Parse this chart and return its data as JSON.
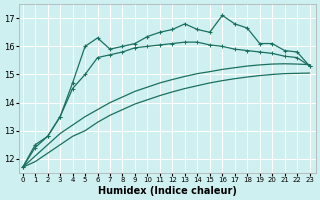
{
  "xlabel": "Humidex (Indice chaleur)",
  "ylabel": "",
  "bg_color": "#cff0f0",
  "grid_color": "#ffffff",
  "line_color": "#1a7060",
  "x_ticks": [
    0,
    1,
    2,
    3,
    4,
    5,
    6,
    7,
    8,
    9,
    10,
    11,
    12,
    13,
    14,
    15,
    16,
    17,
    18,
    19,
    20,
    21,
    22,
    23
  ],
  "y_ticks": [
    12,
    13,
    14,
    15,
    16,
    17
  ],
  "xlim": [
    -0.3,
    23.5
  ],
  "ylim": [
    11.5,
    17.5
  ],
  "line1_x": [
    0,
    1,
    2,
    3,
    4,
    5,
    6,
    7,
    8,
    9,
    10,
    11,
    12,
    13,
    14,
    15,
    16,
    17,
    18,
    19,
    20,
    21,
    22,
    23
  ],
  "line1_y": [
    11.7,
    12.5,
    12.8,
    13.5,
    14.7,
    16.0,
    16.3,
    15.9,
    16.0,
    16.1,
    16.35,
    16.5,
    16.6,
    16.8,
    16.6,
    16.5,
    17.1,
    16.8,
    16.65,
    16.1,
    16.1,
    15.85,
    15.8,
    15.3
  ],
  "line2_x": [
    0,
    1,
    2,
    3,
    4,
    5,
    6,
    7,
    8,
    9,
    10,
    11,
    12,
    13,
    14,
    15,
    16,
    17,
    18,
    19,
    20,
    21,
    22,
    23
  ],
  "line2_y": [
    11.7,
    12.4,
    12.8,
    13.5,
    14.5,
    15.0,
    15.6,
    15.7,
    15.8,
    15.95,
    16.0,
    16.05,
    16.1,
    16.15,
    16.15,
    16.05,
    16.0,
    15.9,
    15.85,
    15.8,
    15.75,
    15.65,
    15.6,
    15.3
  ],
  "line3_x": [
    0,
    1,
    2,
    3,
    4,
    5,
    6,
    7,
    8,
    9,
    10,
    11,
    12,
    13,
    14,
    15,
    16,
    17,
    18,
    19,
    20,
    21,
    22,
    23
  ],
  "line3_y": [
    11.7,
    12.1,
    12.5,
    12.9,
    13.2,
    13.5,
    13.75,
    14.0,
    14.2,
    14.4,
    14.55,
    14.7,
    14.82,
    14.93,
    15.03,
    15.1,
    15.18,
    15.24,
    15.3,
    15.34,
    15.37,
    15.38,
    15.37,
    15.35
  ],
  "line4_x": [
    0,
    1,
    2,
    3,
    4,
    5,
    6,
    7,
    8,
    9,
    10,
    11,
    12,
    13,
    14,
    15,
    16,
    17,
    18,
    19,
    20,
    21,
    22,
    23
  ],
  "line4_y": [
    11.7,
    11.9,
    12.2,
    12.5,
    12.8,
    13.0,
    13.3,
    13.55,
    13.75,
    13.95,
    14.1,
    14.25,
    14.38,
    14.5,
    14.6,
    14.7,
    14.78,
    14.85,
    14.91,
    14.96,
    15.0,
    15.03,
    15.04,
    15.05
  ]
}
